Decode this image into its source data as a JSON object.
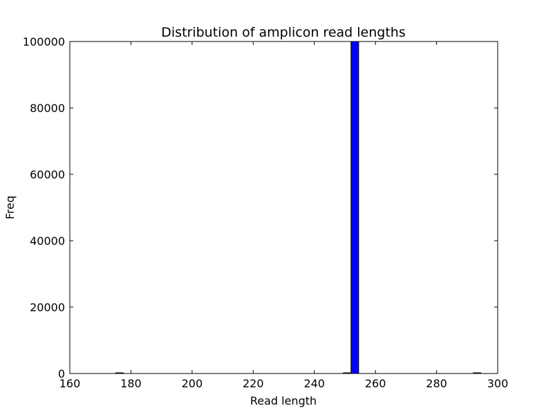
{
  "chart_data": {
    "type": "bar",
    "title": "Distribution of amplicon read lengths",
    "xlabel": "Read length",
    "ylabel": "Freq",
    "xlim": [
      160,
      300
    ],
    "ylim": [
      0,
      100000
    ],
    "x_ticks": [
      "160",
      "180",
      "200",
      "220",
      "240",
      "260",
      "280",
      "300"
    ],
    "y_ticks": [
      "0",
      "20000",
      "40000",
      "60000",
      "80000",
      "100000"
    ],
    "grid": false,
    "legend": "none",
    "bar_color": "#0000ff",
    "bins": [
      {
        "start": 175,
        "end": 177.5,
        "value": 120
      },
      {
        "start": 249.5,
        "end": 252,
        "value": 200
      },
      {
        "start": 252,
        "end": 254.5,
        "value": 100000
      },
      {
        "start": 292,
        "end": 294.5,
        "value": 5
      }
    ]
  }
}
